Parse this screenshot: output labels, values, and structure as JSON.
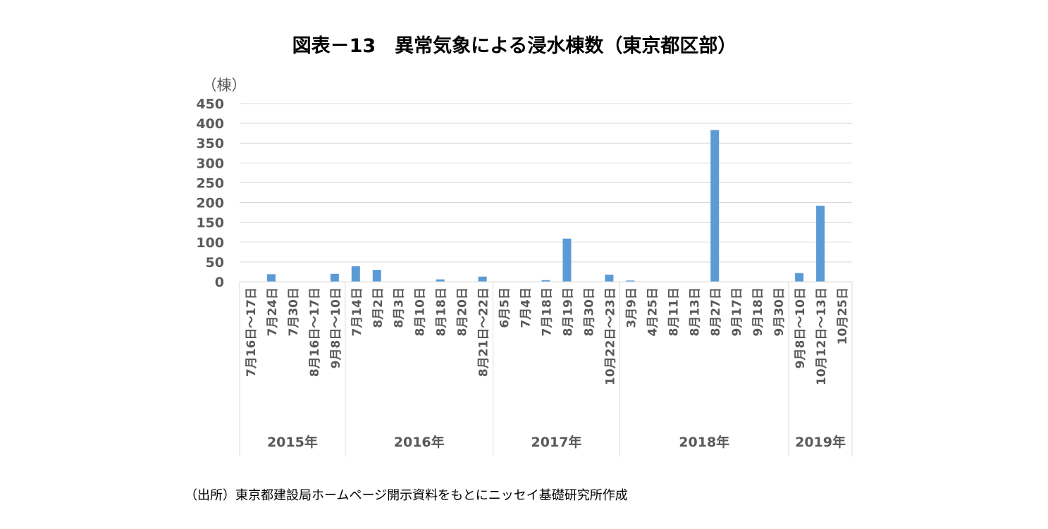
{
  "source": "（出所）東京都建設局ホームページ開示資料をもとにニッセイ基礎研究所作成",
  "chart_data": {
    "type": "bar",
    "title": "図表－13　異常気象による浸水棟数（東京都区部）",
    "ylabel": "（棟）",
    "xlabel": "",
    "ylim": [
      0,
      450
    ],
    "yticks": [
      0,
      50,
      100,
      150,
      200,
      250,
      300,
      350,
      400,
      450
    ],
    "grid": true,
    "bar_color": "#5b9bd5",
    "categories": [
      "7月16日～17日",
      "7月24日",
      "7月30日",
      "8月16日～17日",
      "9月8日～10日",
      "7月14日",
      "8月2日",
      "8月3日",
      "8月10日",
      "8月18日",
      "8月20日",
      "8月21日～22日",
      "6月5日",
      "7月4日",
      "7月18日",
      "8月19日",
      "8月30日",
      "10月22日～23日",
      "3月9日",
      "4月25日",
      "8月11日",
      "8月13日",
      "8月27日",
      "9月17日",
      "9月18日",
      "9月30日",
      "9月8日～10日",
      "10月12日～13日",
      "10月25日"
    ],
    "values": [
      0,
      19,
      0,
      0,
      20,
      39,
      30,
      0,
      0,
      6,
      0,
      13,
      0,
      0,
      4,
      109,
      0,
      18,
      3,
      0,
      0,
      0,
      383,
      0,
      0,
      0,
      22,
      192,
      0
    ],
    "groups": [
      {
        "label": "2015年",
        "count": 5
      },
      {
        "label": "2016年",
        "count": 7
      },
      {
        "label": "2017年",
        "count": 6
      },
      {
        "label": "2018年",
        "count": 8
      },
      {
        "label": "2019年",
        "count": 3
      }
    ]
  }
}
